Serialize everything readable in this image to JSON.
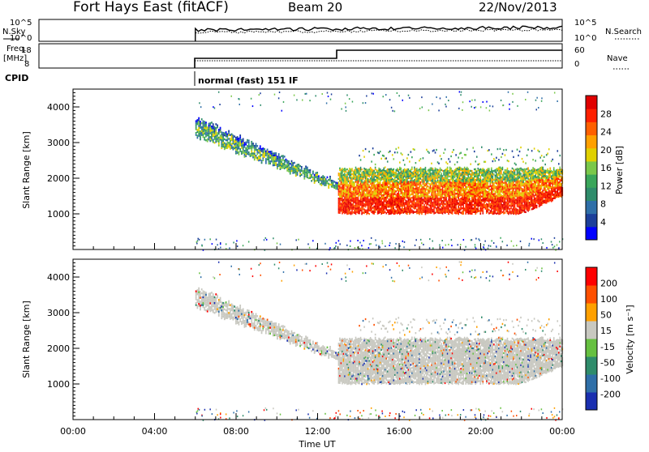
{
  "header": {
    "radar": "Fort Hays East (fitACF)",
    "beam": "Beam 20",
    "date": "22/Nov/2013"
  },
  "aux": {
    "nsky_label": "N.Sky",
    "nsky_ticks": [
      "10^5",
      "10^0"
    ],
    "nsearch_label": "N.Search",
    "nsearch_ticks": [
      "10^5",
      "10^0"
    ],
    "freq_label": "Freq.",
    "freq_unit": "[MHz]",
    "freq_ticks": [
      "18",
      "8"
    ],
    "nave_label": "Nave",
    "nave_ticks": [
      "60",
      "0"
    ],
    "cpid_label": "CPID",
    "cpid_text": "normal (fast) 151 IF"
  },
  "chart_data": [
    {
      "type": "heatmap",
      "name": "power",
      "ylabel": "Slant Range [km]",
      "yticks": [
        "4000",
        "3000",
        "2000",
        "1000"
      ],
      "ylim": [
        0,
        4500
      ],
      "xlim": [
        0,
        24
      ],
      "colorbar": {
        "label": "Power [dB]",
        "ticks": [
          "28",
          "24",
          "20",
          "16",
          "12",
          "8",
          "4"
        ],
        "colors": [
          "#0000ff",
          "#1c3f9a",
          "#2f6fa8",
          "#2f8c6b",
          "#3aa65a",
          "#7ac84a",
          "#e0d000",
          "#ffa000",
          "#ff6000",
          "#ff2000",
          "#e00000"
        ]
      },
      "regions": [
        {
          "desc": "descending echo",
          "x": [
            6.0,
            13.0
          ],
          "y_top": [
            3700,
            1900
          ],
          "y_bottom": [
            3100,
            1800
          ]
        },
        {
          "desc": "strong band",
          "x": [
            13.0,
            24.0
          ],
          "y_range": [
            1000,
            2300
          ]
        }
      ]
    },
    {
      "type": "heatmap",
      "name": "velocity",
      "ylabel": "Slant Range [km]",
      "yticks": [
        "4000",
        "3000",
        "2000",
        "1000"
      ],
      "ylim": [
        0,
        4500
      ],
      "xlim": [
        0,
        24
      ],
      "colorbar": {
        "label": "Velocity [m s⁻¹]",
        "ticks": [
          "200",
          "100",
          "50",
          "15",
          "-15",
          "-50",
          "-100",
          "-200"
        ],
        "colors": [
          "#1a2fb0",
          "#2f6fa8",
          "#2f8c6b",
          "#66c040",
          "#c8c8c0",
          "#ffa000",
          "#ff5000",
          "#ff0000"
        ]
      }
    }
  ],
  "xaxis": {
    "label": "Time UT",
    "ticks": [
      "00:00",
      "04:00",
      "08:00",
      "12:00",
      "16:00",
      "20:00",
      "00:00"
    ]
  }
}
